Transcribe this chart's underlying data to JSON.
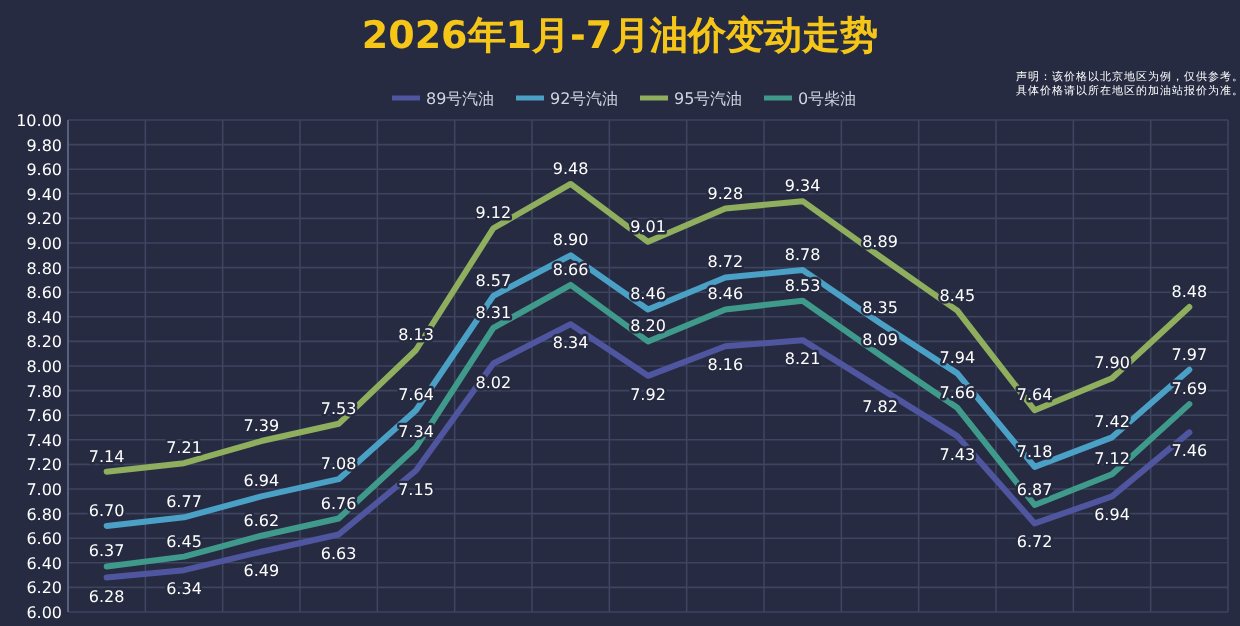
{
  "chart_data": {
    "type": "line",
    "title": "2026年1月-7月油价变动走势",
    "annotations": [
      "声明：该价格以北京地区为例，仅供参考。具体价格请以所在地区的加油站报价为准。"
    ],
    "categories": [
      null,
      null,
      null,
      null,
      null,
      null,
      null,
      null,
      null,
      null,
      null,
      null,
      null,
      null,
      null
    ],
    "series": [
      {
        "name": "89号汽油",
        "color": "#50559f",
        "values": [
          6.28,
          6.34,
          6.49,
          6.63,
          7.15,
          8.02,
          8.34,
          7.92,
          8.16,
          8.21,
          7.82,
          7.43,
          6.72,
          6.94,
          7.46
        ],
        "value_labels": [
          "6.28",
          "6.34",
          "6.49",
          "6.63",
          "7.15",
          "8.02",
          "8.34",
          "7.92",
          "8.16",
          "8.21",
          "7.82",
          "7.43",
          "6.72",
          "6.94",
          "7.46"
        ]
      },
      {
        "name": "92号汽油",
        "color": "#4ba0c6",
        "values": [
          6.7,
          6.77,
          6.94,
          7.08,
          7.64,
          8.57,
          8.9,
          8.46,
          8.72,
          8.78,
          8.35,
          7.94,
          7.18,
          7.42,
          7.97
        ],
        "value_labels": [
          "6.70",
          "6.77",
          "6.94",
          "7.08",
          "7.64",
          "8.57",
          "8.90",
          "8.46",
          "8.72",
          "8.78",
          "8.35",
          "7.94",
          "7.18",
          "7.42",
          "7.97"
        ]
      },
      {
        "name": "95号汽油",
        "color": "#8fae5e",
        "values": [
          7.14,
          7.21,
          7.39,
          7.53,
          8.13,
          9.12,
          9.48,
          9.01,
          9.28,
          9.34,
          8.89,
          8.45,
          7.64,
          7.9,
          8.48
        ],
        "value_labels": [
          "7.14",
          "7.21",
          "7.39",
          "7.53",
          "8.13",
          "9.12",
          "9.48",
          "9.01",
          "9.28",
          "9.34",
          "8.89",
          "8.45",
          "7.64",
          "7.90",
          "8.48"
        ]
      },
      {
        "name": "0号柴油",
        "color": "#3f9a8c",
        "values": [
          6.37,
          6.45,
          6.62,
          6.76,
          7.34,
          8.31,
          8.66,
          8.2,
          8.46,
          8.53,
          8.09,
          7.66,
          6.87,
          7.12,
          7.69
        ],
        "value_labels": [
          "6.37",
          "6.45",
          "6.62",
          "6.76",
          "7.34",
          "8.31",
          "8.66",
          "8.20",
          "8.46",
          "8.53",
          "8.09",
          "7.66",
          "6.87",
          "7.12",
          "7.69"
        ]
      }
    ],
    "ylim": [
      6,
      10
    ],
    "yticks": [
      {
        "value": 6,
        "label": "6.00"
      },
      {
        "value": 6.2,
        "label": "6.20"
      },
      {
        "value": 6.4,
        "label": "6.40"
      },
      {
        "value": 6.6,
        "label": "6.60"
      },
      {
        "value": 6.8,
        "label": "6.80"
      },
      {
        "value": 7,
        "label": "7.00"
      },
      {
        "value": 7.2,
        "label": "7.20"
      },
      {
        "value": 7.4,
        "label": "7.40"
      },
      {
        "value": 7.6,
        "label": "7.60"
      },
      {
        "value": 7.8,
        "label": "7.80"
      },
      {
        "value": 8,
        "label": "8.00"
      },
      {
        "value": 8.2,
        "label": "8.20"
      },
      {
        "value": 8.4,
        "label": "8.40"
      },
      {
        "value": 8.6,
        "label": "8.60"
      },
      {
        "value": 8.8,
        "label": "8.80"
      },
      {
        "value": 9,
        "label": "9.00"
      },
      {
        "value": 9.2,
        "label": "9.20"
      },
      {
        "value": 9.4,
        "label": "9.40"
      },
      {
        "value": 9.6,
        "label": "9.60"
      },
      {
        "value": 9.8,
        "label": "9.80"
      },
      {
        "value": 10,
        "label": "10.00"
      }
    ],
    "grid": true,
    "legend": "top"
  }
}
